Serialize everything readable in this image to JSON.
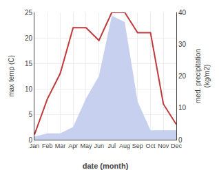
{
  "chart_data": {
    "type": "line",
    "xlabel": "date (month)",
    "ylabel": "max temp (C)",
    "y2label": "med. precipitation\n(kg/m2)",
    "categories": [
      "Jan",
      "Feb",
      "Mar",
      "Apr",
      "May",
      "Jun",
      "Jul",
      "Aug",
      "Sep",
      "Oct",
      "Nov",
      "Dec"
    ],
    "series": [
      {
        "type": "area",
        "axis": "y2",
        "color": "#c8d0f0",
        "values": [
          1,
          2,
          2,
          4,
          13,
          20,
          39,
          37,
          12,
          3,
          3,
          3
        ]
      },
      {
        "type": "line",
        "color": "#c0393b",
        "values": [
          1,
          8,
          13,
          22,
          22,
          19.5,
          25,
          25,
          21,
          21,
          7,
          3
        ]
      }
    ],
    "ylim": [
      0,
      25
    ],
    "yticks": [
      0,
      5,
      10,
      15,
      20,
      25
    ],
    "y2lim": [
      0,
      40
    ],
    "y2ticks": [
      0,
      10,
      20,
      30,
      40
    ],
    "grid": true
  }
}
